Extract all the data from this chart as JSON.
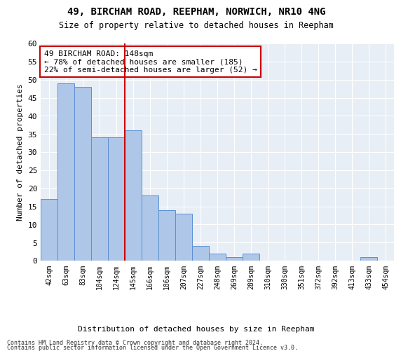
{
  "title": "49, BIRCHAM ROAD, REEPHAM, NORWICH, NR10 4NG",
  "subtitle": "Size of property relative to detached houses in Reepham",
  "xlabel": "Distribution of detached houses by size in Reepham",
  "ylabel": "Number of detached properties",
  "categories": [
    "42sqm",
    "63sqm",
    "83sqm",
    "104sqm",
    "124sqm",
    "145sqm",
    "166sqm",
    "186sqm",
    "207sqm",
    "227sqm",
    "248sqm",
    "269sqm",
    "289sqm",
    "310sqm",
    "330sqm",
    "351sqm",
    "372sqm",
    "392sqm",
    "413sqm",
    "433sqm",
    "454sqm"
  ],
  "values": [
    17,
    49,
    48,
    34,
    34,
    36,
    18,
    14,
    13,
    4,
    2,
    1,
    2,
    0,
    0,
    0,
    0,
    0,
    0,
    1,
    0
  ],
  "bar_color": "#aec6e8",
  "bar_edge_color": "#5b8fd4",
  "vline_x_index": 5,
  "vline_color": "#cc0000",
  "annotation_text": "49 BIRCHAM ROAD: 148sqm\n← 78% of detached houses are smaller (185)\n22% of semi-detached houses are larger (52) →",
  "annotation_box_color": "#cc0000",
  "ylim": [
    0,
    60
  ],
  "yticks": [
    0,
    5,
    10,
    15,
    20,
    25,
    30,
    35,
    40,
    45,
    50,
    55,
    60
  ],
  "footer_line1": "Contains HM Land Registry data © Crown copyright and database right 2024.",
  "footer_line2": "Contains public sector information licensed under the Open Government Licence v3.0.",
  "background_color": "#ffffff",
  "plot_bg_color": "#e8eef5"
}
